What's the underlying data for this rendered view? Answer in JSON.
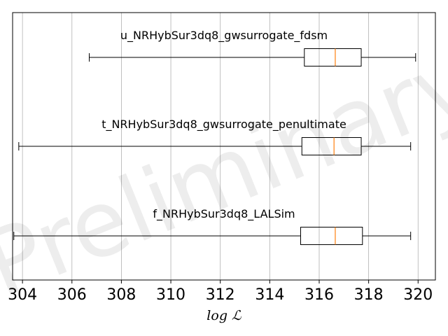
{
  "chart_data": {
    "type": "boxplot",
    "orientation": "horizontal",
    "xlabel": "log ℒ",
    "xlim": [
      303.6,
      320.7
    ],
    "xticks": [
      304,
      306,
      308,
      310,
      312,
      314,
      316,
      318,
      320
    ],
    "grid": "vertical",
    "watermark": "Preliminary",
    "series": [
      {
        "name": "u_NRHybSur3dq8_gwsurrogate_fdsm",
        "whisker_low": 306.7,
        "q1": 315.4,
        "median": 316.65,
        "q3": 317.7,
        "whisker_high": 319.9
      },
      {
        "name": "t_NRHybSur3dq8_gwsurrogate_penultimate",
        "whisker_low": 303.85,
        "q1": 315.3,
        "median": 316.6,
        "q3": 317.7,
        "whisker_high": 319.7
      },
      {
        "name": "f_NRHybSur3dq8_LALSim",
        "whisker_low": 303.65,
        "q1": 315.25,
        "median": 316.65,
        "q3": 317.75,
        "whisker_high": 319.7
      }
    ],
    "colors": {
      "box": "#000000",
      "median": "#ff7f0e",
      "grid": "#b0b0b0"
    }
  }
}
